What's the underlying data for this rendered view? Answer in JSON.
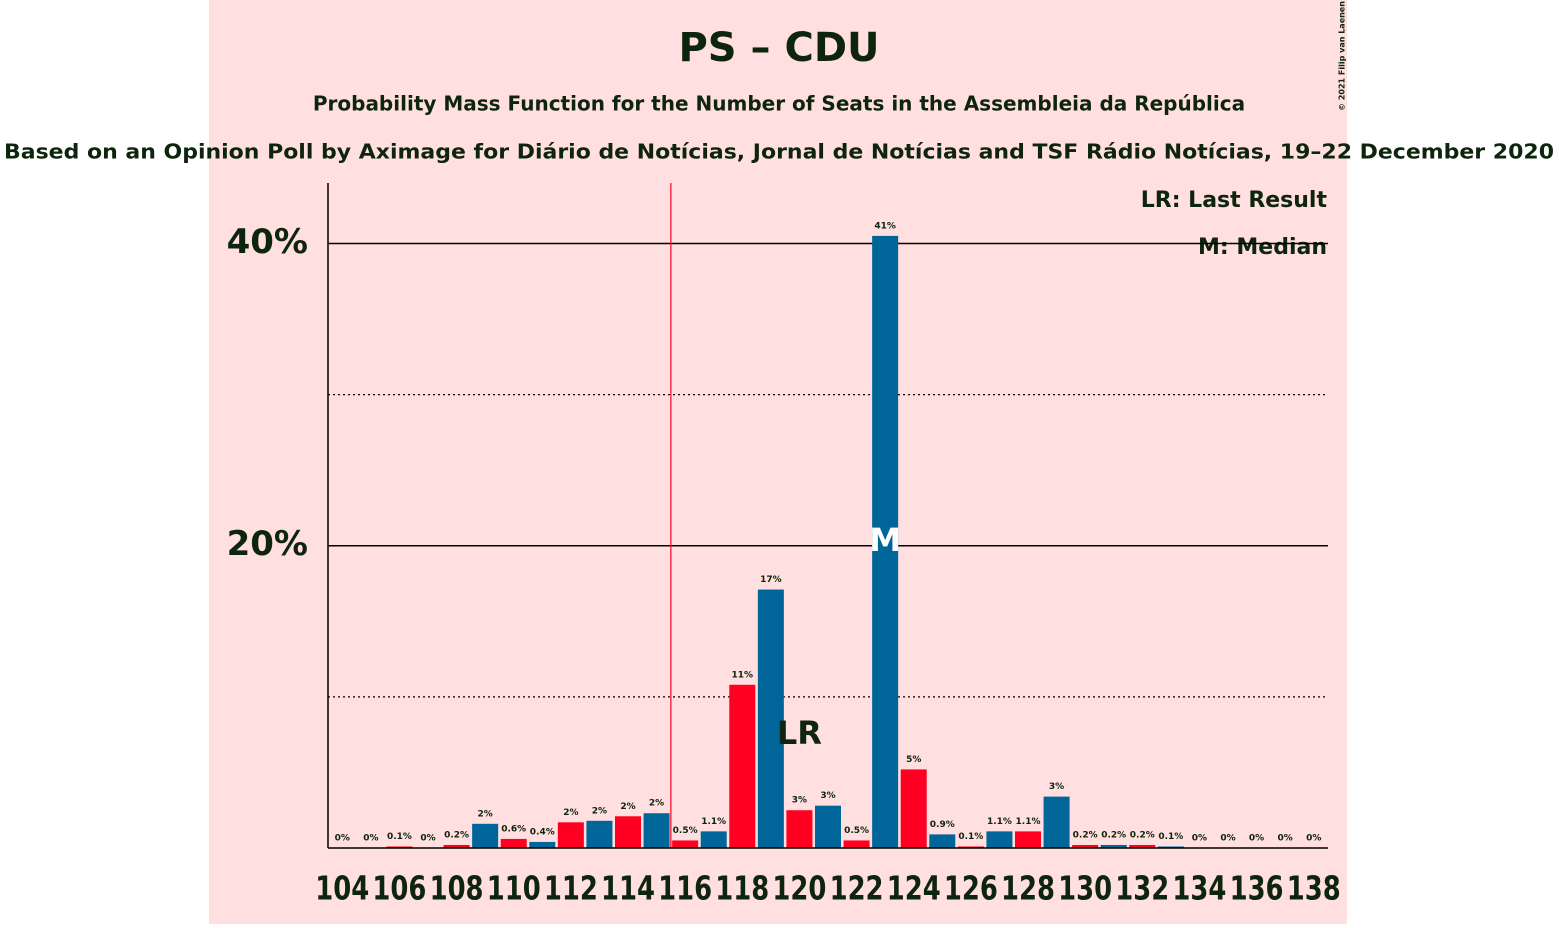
{
  "chart_data": {
    "type": "bar",
    "title": "PS – CDU",
    "subtitle": "Probability Mass Function for the Number of Seats in the Assembleia da República",
    "subtitle2": "Based on an Opinion Poll by Aximage for Diário de Notícias, Jornal de Notícias and TSF Rádio Notícias, 19–22 December 2020",
    "credit": "© 2021 Filip van Laenen",
    "categories": [
      "104",
      null,
      "106",
      null,
      "108",
      null,
      "110",
      null,
      "112",
      null,
      "114",
      null,
      "116",
      null,
      "118",
      null,
      "120",
      null,
      "122",
      null,
      "124",
      null,
      "126",
      null,
      "128",
      null,
      "130",
      null,
      "132",
      null,
      "134",
      null,
      "136",
      null,
      "138"
    ],
    "values": [
      0,
      0,
      0.1,
      0,
      0.2,
      1.6,
      0.6,
      0.4,
      1.7,
      1.8,
      2.1,
      2.3,
      0.5,
      1.1,
      10.8,
      17.1,
      2.5,
      2.8,
      0.5,
      40.5,
      5.2,
      0.9,
      0.1,
      1.1,
      1.1,
      3.4,
      0.2,
      0.2,
      0.2,
      0.1,
      0,
      0,
      0,
      0,
      0
    ],
    "value_labels": [
      "0%",
      "0%",
      "0.1%",
      "0%",
      "0.2%",
      "2%",
      "0.6%",
      "0.4%",
      "2%",
      "2%",
      "2%",
      "2%",
      "0.5%",
      "1.1%",
      "11%",
      "17%",
      "3%",
      "3%",
      "0.5%",
      "41%",
      "5%",
      "0.9%",
      "0.1%",
      "1.1%",
      "1.1%",
      "3%",
      "0.2%",
      "0.2%",
      "0.2%",
      "0.1%",
      "0%",
      "0%",
      "0%",
      "0%",
      "0%"
    ],
    "colors": [
      "#ff0022",
      "#006699"
    ],
    "ylim": [
      0,
      44
    ],
    "yticks": [
      {
        "value": 20,
        "label": "20%"
      },
      {
        "value": 40,
        "label": "40%"
      }
    ],
    "minor_yticks": [
      10,
      30
    ],
    "majority_line": 116,
    "last_result": {
      "category": "120",
      "label": "LR"
    },
    "median": {
      "category": "123",
      "label": "M"
    },
    "legend": [
      "LR: Last Result",
      "M: Median"
    ]
  }
}
